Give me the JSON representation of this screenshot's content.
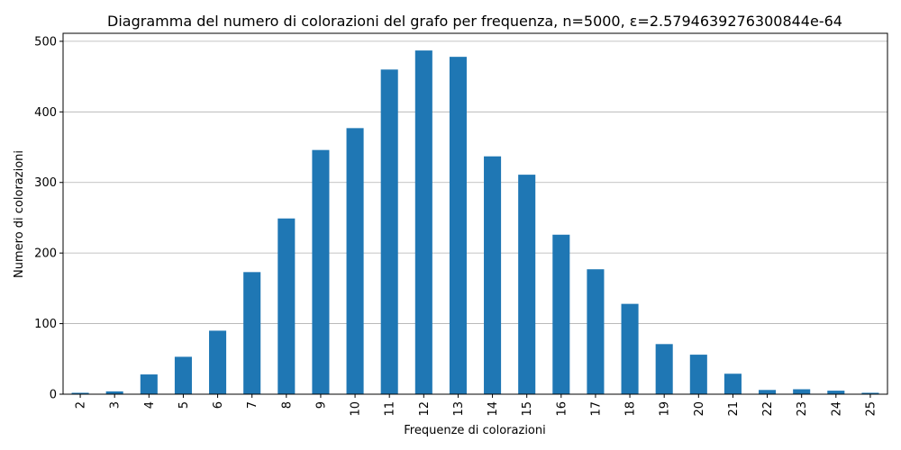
{
  "chart_data": {
    "type": "bar",
    "title": "Diagramma del numero di colorazioni del grafo per frequenza, n=5000, ε=2.5794639276300844e-64",
    "xlabel": "Frequenze di colorazioni",
    "ylabel": "Numero di colorazioni",
    "categories": [
      "2",
      "3",
      "4",
      "5",
      "6",
      "7",
      "8",
      "9",
      "10",
      "11",
      "12",
      "13",
      "14",
      "15",
      "16",
      "17",
      "18",
      "19",
      "20",
      "21",
      "22",
      "23",
      "24",
      "25"
    ],
    "values": [
      2,
      4,
      28,
      53,
      90,
      173,
      249,
      346,
      377,
      460,
      487,
      478,
      337,
      311,
      226,
      177,
      128,
      71,
      56,
      29,
      6,
      7,
      5,
      2
    ],
    "yticks": [
      0,
      100,
      200,
      300,
      400,
      500
    ],
    "ylim": [
      0,
      511.35
    ],
    "grid": "y",
    "bar_color": "#1f77b4",
    "xtick_rotation": "vertical"
  }
}
